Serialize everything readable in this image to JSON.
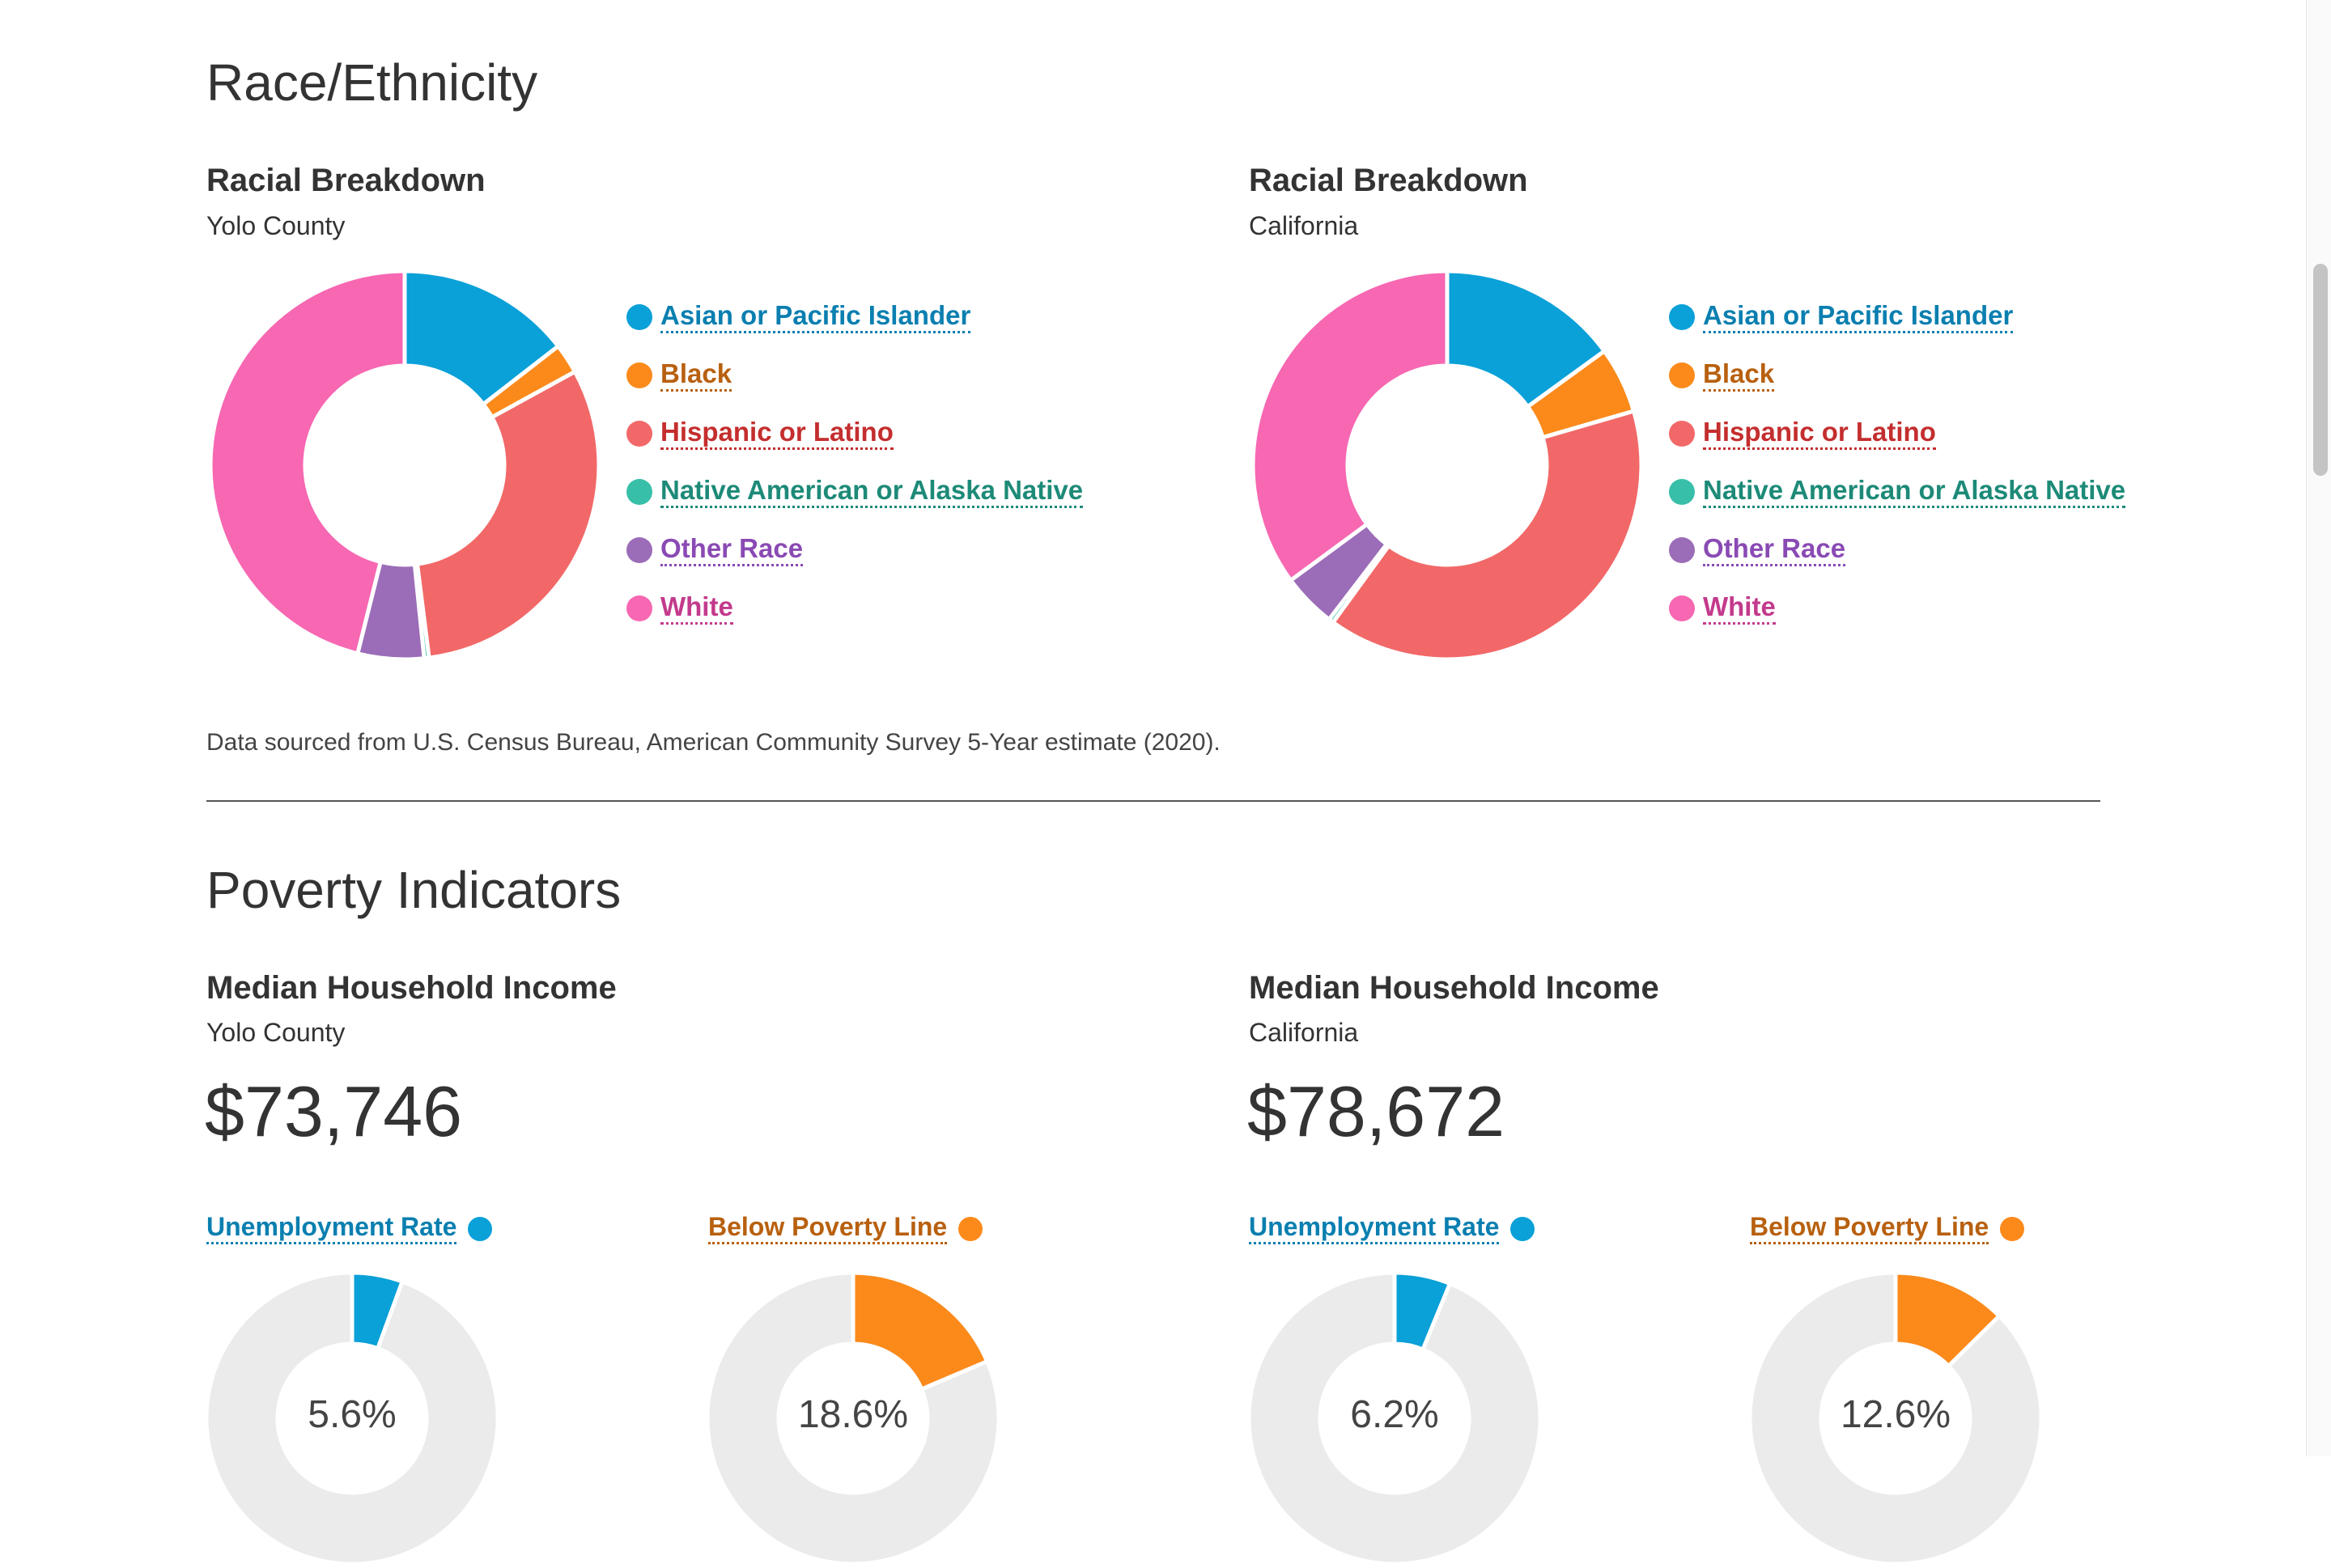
{
  "race_section": {
    "title": "Race/Ethnicity",
    "left": {
      "title": "Racial Breakdown",
      "subtitle": "Yolo County"
    },
    "right": {
      "title": "Racial Breakdown",
      "subtitle": "California"
    },
    "legend": [
      {
        "label": "Asian or Pacific Islander",
        "color": "#0aa0d8",
        "text_color": "#0a7fb0"
      },
      {
        "label": "Black",
        "color": "#fb8a1b",
        "text_color": "#b8600f"
      },
      {
        "label": "Hispanic or Latino",
        "color": "#f26868",
        "text_color": "#c42e2e"
      },
      {
        "label": "Native American or Alaska Native",
        "color": "#38bfa9",
        "text_color": "#1d8a78"
      },
      {
        "label": "Other Race",
        "color": "#9b6cb8",
        "text_color": "#8a4ab4"
      },
      {
        "label": "White",
        "color": "#f767b2",
        "text_color": "#c33a8c"
      }
    ],
    "source": "Data sourced from U.S. Census Bureau, American Community Survey 5-Year estimate (2020)."
  },
  "chart_data": [
    {
      "type": "pie",
      "title": "Racial Breakdown",
      "subtitle": "Yolo County",
      "categories": [
        "Asian or Pacific Islander",
        "Black",
        "Hispanic or Latino",
        "Native American or Alaska Native",
        "Other Race",
        "White"
      ],
      "values": [
        14.5,
        2.5,
        31.0,
        0.4,
        5.5,
        46.1
      ],
      "unit": "%"
    },
    {
      "type": "pie",
      "title": "Racial Breakdown",
      "subtitle": "California",
      "categories": [
        "Asian or Pacific Islander",
        "Black",
        "Hispanic or Latino",
        "Native American or Alaska Native",
        "Other Race",
        "White"
      ],
      "values": [
        15.0,
        5.5,
        39.5,
        0.4,
        4.5,
        35.1
      ],
      "unit": "%"
    },
    {
      "type": "pie",
      "title": "Unemployment Rate",
      "subtitle": "Yolo County",
      "categories": [
        "Unemployment Rate",
        ""
      ],
      "values": [
        5.6,
        94.4
      ],
      "unit": "%"
    },
    {
      "type": "pie",
      "title": "Below Poverty Line",
      "subtitle": "Yolo County",
      "categories": [
        "Below Poverty Line",
        ""
      ],
      "values": [
        18.6,
        81.4
      ],
      "unit": "%"
    },
    {
      "type": "pie",
      "title": "Unemployment Rate",
      "subtitle": "California",
      "categories": [
        "Unemployment Rate",
        ""
      ],
      "values": [
        6.2,
        93.8
      ],
      "unit": "%"
    },
    {
      "type": "pie",
      "title": "Below Poverty Line",
      "subtitle": "California",
      "categories": [
        "Below Poverty Line",
        ""
      ],
      "values": [
        12.6,
        87.4
      ],
      "unit": "%"
    }
  ],
  "poverty_section": {
    "title": "Poverty Indicators",
    "left": {
      "title": "Median Household Income",
      "subtitle": "Yolo County",
      "income": "$73,746",
      "unemployment": {
        "label": "Unemployment Rate",
        "value_text": "5.6%",
        "value": 5.6,
        "color": "#0aa0d8",
        "text_color": "#0a7fb0"
      },
      "poverty": {
        "label": "Below Poverty Line",
        "value_text": "18.6%",
        "value": 18.6,
        "color": "#fb8a1b",
        "text_color": "#b8600f"
      }
    },
    "right": {
      "title": "Median Household Income",
      "subtitle": "California",
      "income": "$78,672",
      "unemployment": {
        "label": "Unemployment Rate",
        "value_text": "6.2%",
        "value": 6.2,
        "color": "#0aa0d8",
        "text_color": "#0a7fb0"
      },
      "poverty": {
        "label": "Below Poverty Line",
        "value_text": "12.6%",
        "value": 12.6,
        "color": "#fb8a1b",
        "text_color": "#b8600f"
      }
    }
  },
  "gauge_track_color": "#ebebeb"
}
